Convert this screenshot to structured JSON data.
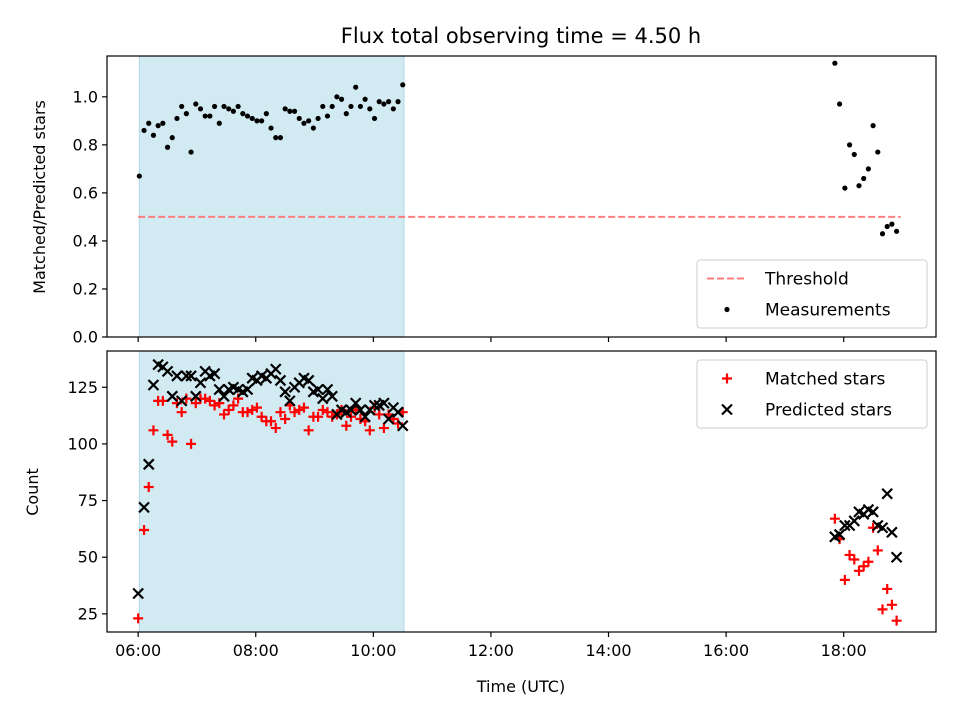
{
  "chart_data": [
    {
      "type": "scatter",
      "title": "Flux total observing time = 4.50 h",
      "xlabel": "",
      "ylabel": "Matched/Predicted stars",
      "xlim": [
        5.47,
        19.57
      ],
      "ylim": [
        0.0,
        1.17
      ],
      "yticks": [
        0.0,
        0.2,
        0.4,
        0.6,
        0.8,
        1.0
      ],
      "ytick_labels": [
        "0.0",
        "0.2",
        "0.4",
        "0.6",
        "0.8",
        "1.0"
      ],
      "xticks": [
        6,
        8,
        10,
        12,
        14,
        16,
        18
      ],
      "shaded_interval": [
        6.02,
        10.52
      ],
      "shade_color": "#add8e6",
      "legend_position": "lower-right",
      "threshold": {
        "name": "Threshold",
        "value": 0.5,
        "x_range": [
          6.0,
          18.97
        ],
        "color": "#ff7f7f",
        "style": "dashed"
      },
      "series": [
        {
          "name": "Measurements",
          "color": "#000000",
          "marker": "dot",
          "x": [
            6.02,
            6.1,
            6.18,
            6.26,
            6.34,
            6.42,
            6.5,
            6.58,
            6.66,
            6.74,
            6.82,
            6.9,
            6.98,
            7.06,
            7.14,
            7.22,
            7.3,
            7.38,
            7.46,
            7.54,
            7.62,
            7.7,
            7.78,
            7.86,
            7.94,
            8.02,
            8.1,
            8.18,
            8.26,
            8.34,
            8.42,
            8.5,
            8.58,
            8.66,
            8.74,
            8.82,
            8.9,
            8.98,
            9.06,
            9.14,
            9.22,
            9.3,
            9.38,
            9.46,
            9.54,
            9.62,
            9.7,
            9.78,
            9.86,
            9.94,
            10.02,
            10.1,
            10.18,
            10.26,
            10.34,
            10.42,
            10.5,
            17.85,
            17.93,
            18.02,
            18.1,
            18.18,
            18.26,
            18.34,
            18.42,
            18.5,
            18.58,
            18.66,
            18.74,
            18.82,
            18.9
          ],
          "y": [
            0.67,
            0.86,
            0.89,
            0.84,
            0.88,
            0.89,
            0.79,
            0.83,
            0.91,
            0.96,
            0.93,
            0.77,
            0.97,
            0.95,
            0.92,
            0.92,
            0.96,
            0.89,
            0.96,
            0.95,
            0.94,
            0.96,
            0.93,
            0.92,
            0.91,
            0.9,
            0.9,
            0.93,
            0.87,
            0.83,
            0.83,
            0.95,
            0.94,
            0.94,
            0.91,
            0.89,
            0.9,
            0.87,
            0.91,
            0.96,
            0.92,
            0.96,
            1.0,
            0.99,
            0.93,
            0.96,
            1.04,
            0.96,
            0.99,
            0.95,
            0.91,
            0.98,
            0.97,
            0.98,
            0.95,
            0.98,
            1.05,
            1.14,
            0.97,
            0.62,
            0.8,
            0.76,
            0.63,
            0.66,
            0.7,
            0.88,
            0.77,
            0.43,
            0.46,
            0.47,
            0.44
          ]
        }
      ]
    },
    {
      "type": "scatter",
      "xlabel": "Time (UTC)",
      "ylabel": "Count",
      "xlim": [
        5.47,
        19.57
      ],
      "ylim": [
        17,
        141
      ],
      "yticks": [
        25,
        50,
        75,
        100,
        125
      ],
      "ytick_labels": [
        "25",
        "50",
        "75",
        "100",
        "125"
      ],
      "xticks": [
        6,
        8,
        10,
        12,
        14,
        16,
        18
      ],
      "xtick_labels": [
        "06:00",
        "08:00",
        "10:00",
        "12:00",
        "14:00",
        "16:00",
        "18:00"
      ],
      "shaded_interval": [
        6.02,
        10.52
      ],
      "shade_color": "#add8e6",
      "legend_position": "upper-right",
      "series": [
        {
          "name": "Matched stars",
          "color": "#ff0000",
          "marker": "plus",
          "x": [
            6.0,
            6.1,
            6.18,
            6.26,
            6.34,
            6.42,
            6.5,
            6.58,
            6.66,
            6.74,
            6.82,
            6.9,
            6.98,
            7.06,
            7.14,
            7.22,
            7.3,
            7.38,
            7.46,
            7.54,
            7.62,
            7.7,
            7.78,
            7.86,
            7.94,
            8.02,
            8.1,
            8.18,
            8.26,
            8.34,
            8.42,
            8.5,
            8.58,
            8.66,
            8.74,
            8.82,
            8.9,
            8.98,
            9.06,
            9.14,
            9.22,
            9.3,
            9.38,
            9.46,
            9.54,
            9.62,
            9.7,
            9.78,
            9.86,
            9.94,
            10.02,
            10.1,
            10.18,
            10.26,
            10.34,
            10.42,
            10.5,
            17.85,
            17.93,
            18.02,
            18.1,
            18.18,
            18.26,
            18.34,
            18.42,
            18.5,
            18.58,
            18.66,
            18.74,
            18.82,
            18.9
          ],
          "y": [
            23,
            62,
            81,
            106,
            119,
            119,
            104,
            101,
            118,
            114,
            120,
            100,
            118,
            120,
            120,
            119,
            117,
            118,
            113,
            115,
            117,
            120,
            114,
            114,
            115,
            116,
            112,
            110,
            110,
            107,
            114,
            111,
            117,
            114,
            115,
            116,
            106,
            112,
            112,
            115,
            114,
            112,
            113,
            115,
            108,
            112,
            115,
            111,
            110,
            106,
            116,
            113,
            107,
            113,
            111,
            109,
            114,
            67,
            58,
            40,
            51,
            49,
            44,
            46,
            48,
            63,
            53,
            27,
            36,
            29,
            22
          ]
        },
        {
          "name": "Predicted stars",
          "color": "#000000",
          "marker": "x",
          "x": [
            6.0,
            6.1,
            6.18,
            6.26,
            6.34,
            6.42,
            6.5,
            6.58,
            6.66,
            6.74,
            6.82,
            6.9,
            6.98,
            7.06,
            7.14,
            7.22,
            7.3,
            7.38,
            7.46,
            7.54,
            7.62,
            7.7,
            7.78,
            7.86,
            7.94,
            8.02,
            8.1,
            8.18,
            8.26,
            8.34,
            8.42,
            8.5,
            8.58,
            8.66,
            8.74,
            8.82,
            8.9,
            8.98,
            9.06,
            9.14,
            9.22,
            9.3,
            9.38,
            9.46,
            9.54,
            9.62,
            9.7,
            9.78,
            9.86,
            9.94,
            10.02,
            10.1,
            10.18,
            10.26,
            10.34,
            10.42,
            10.5,
            17.85,
            17.93,
            18.02,
            18.1,
            18.18,
            18.26,
            18.34,
            18.42,
            18.5,
            18.58,
            18.66,
            18.74,
            18.82,
            18.9
          ],
          "y": [
            34,
            72,
            91,
            126,
            135,
            134,
            132,
            121,
            130,
            119,
            130,
            130,
            121,
            127,
            132,
            130,
            131,
            124,
            121,
            124,
            125,
            124,
            123,
            124,
            129,
            128,
            130,
            129,
            131,
            133,
            128,
            123,
            119,
            125,
            127,
            129,
            128,
            123,
            124,
            120,
            124,
            121,
            113,
            115,
            114,
            115,
            118,
            115,
            112,
            115,
            117,
            117,
            118,
            111,
            116,
            114,
            108,
            59,
            60,
            64,
            64,
            66,
            70,
            69,
            71,
            70,
            64,
            63,
            78,
            61,
            50
          ]
        }
      ]
    }
  ]
}
